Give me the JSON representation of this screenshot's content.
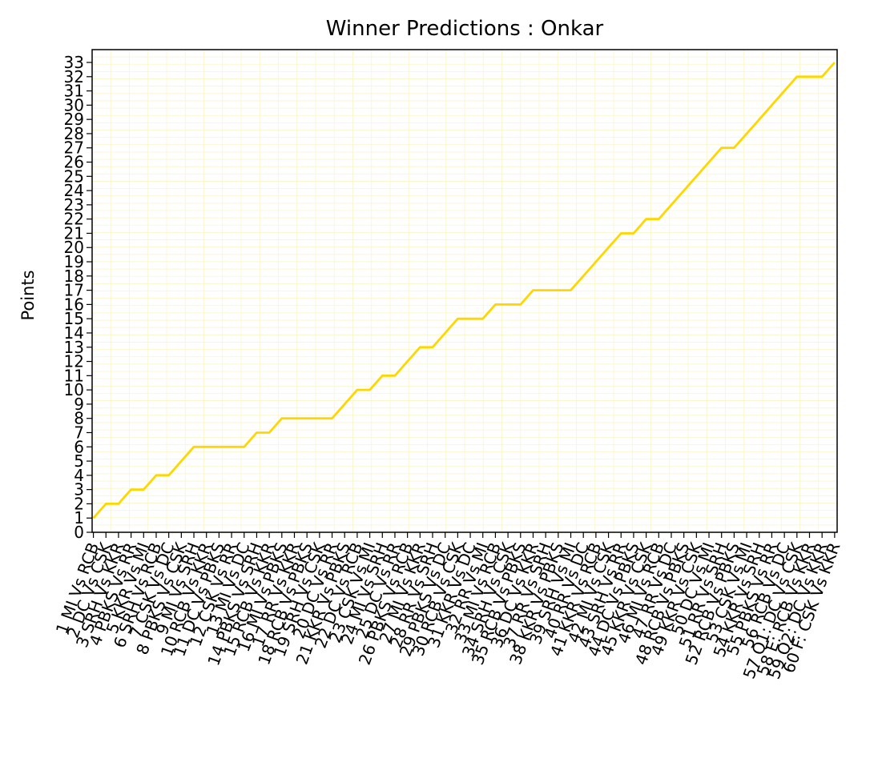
{
  "chart_data": {
    "type": "line",
    "title": "Winner Predictions : Onkar",
    "xlabel": "",
    "ylabel": "Points",
    "ylim": [
      0,
      33.9
    ],
    "y_ticks": [
      0,
      1,
      2,
      3,
      4,
      5,
      6,
      7,
      8,
      9,
      10,
      11,
      12,
      13,
      14,
      15,
      16,
      17,
      18,
      19,
      20,
      21,
      22,
      23,
      24,
      25,
      26,
      27,
      28,
      29,
      30,
      31,
      32,
      33
    ],
    "grid": true,
    "legend": "none",
    "categories": [
      "1 MI Vs RCB",
      "2 DC Vs CSK",
      "3 SRH Vs KKR",
      "4 PBKS Vs RR",
      "5 KKR Vs MI",
      "6 SRH Vs RCB",
      "7 CSK Vs DC",
      "8 PBKS Vs CSK",
      "9 MI Vs SRH",
      "10 RCB Vs KKR",
      "11 DC Vs PBKS",
      "12 CSK Vs RR",
      "13 MI Vs DC",
      "14 PBKS Vs SRH",
      "15 RCB Vs KKR",
      "16 MI Vs PBKS",
      "17 RR Vs KKR",
      "18 RCB Vs PBKS",
      "19 SRH Vs CSK",
      "20 DC Vs RR",
      "21 KKR Vs PBKS",
      "22 DC Vs RCB",
      "23 CSK Vs MI",
      "24 MI Vs SRH",
      "25 DC Vs RR",
      "26 PBKS Vs RCB",
      "27 MI Vs KKR",
      "28 RR Vs SRH",
      "29 PBKS Vs DC",
      "30 RCB Vs CSK",
      "31 KKR Vs DC",
      "32 RR Vs MI",
      "33 MI Vs RCB",
      "34 SRH Vs CSK",
      "35 RCB Vs PBKS",
      "36 DC Vs KKR",
      "37 RR Vs SRH",
      "38 KKR Vs PBKS",
      "39 SRH Vs MI",
      "40 RR Vs DC",
      "41 KKR Vs RCB",
      "42 MI Vs CSK",
      "43 SRH Vs RR",
      "44 DC Vs PBKS",
      "45 KKR Vs CSK",
      "46 MI Vs RCB",
      "47 RR Vs DC",
      "48 RCB Vs PBKS",
      "49 KKR Vs CSK",
      "50 DC Vs MI",
      "51 RR Vs SRH",
      "52 RCB Vs PBKS",
      "53 CSK Vs MI",
      "54 KKR Vs SRH",
      "55 PBKS Vs RR",
      "56 RCB Vs DC",
      "57 Q1: DC Vs CSK",
      "58 E: RCB Vs KKR",
      "59 Q2: DC Vs KKR",
      "60 F: CSK Vs KKR"
    ],
    "series": [
      {
        "name": "",
        "color": "#FFD700",
        "values": [
          1,
          2,
          2,
          3,
          3,
          4,
          4,
          5,
          6,
          6,
          6,
          6,
          6,
          7,
          7,
          8,
          8,
          8,
          8,
          8,
          9,
          10,
          10,
          11,
          11,
          12,
          13,
          13,
          14,
          15,
          15,
          15,
          16,
          16,
          16,
          17,
          17,
          17,
          17,
          18,
          19,
          20,
          21,
          21,
          22,
          22,
          23,
          24,
          25,
          26,
          27,
          27,
          28,
          29,
          30,
          31,
          32,
          32,
          32,
          33
        ]
      }
    ]
  }
}
